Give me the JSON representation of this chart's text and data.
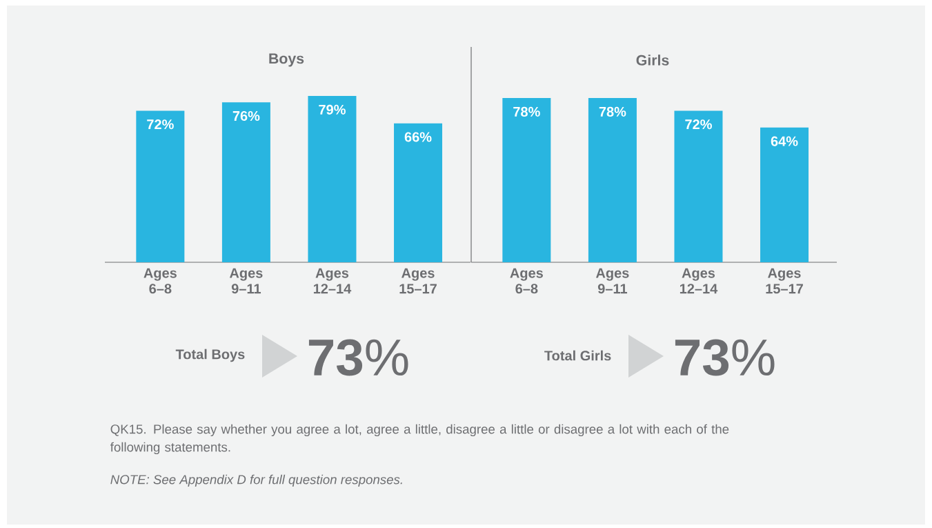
{
  "chart_data": [
    {
      "type": "bar",
      "title": "Boys",
      "categories": [
        "Ages 6–8",
        "Ages 9–11",
        "Ages 12–14",
        "Ages 15–17"
      ],
      "values": [
        72,
        76,
        79,
        66
      ],
      "value_labels": [
        "72%",
        "76%",
        "79%",
        "66%"
      ],
      "color": "#29b5e0",
      "annotations": [
        "Total Boys",
        "**73**%",
        "QK15. Please say whether you agree a lot, agree a little, disagree a little or disagree a lot with each of the following statements.",
        "NOTE: See Appendix D for full question responses."
      ]
    },
    {
      "type": "bar",
      "title": "Girls",
      "categories": [
        "Ages 6–8",
        "Ages 9–11",
        "Ages 12–14",
        "Ages 15–17"
      ],
      "values": [
        78,
        78,
        72,
        64
      ],
      "value_labels": [
        "78%",
        "78%",
        "72%",
        "64%"
      ],
      "color": "#29b5e0",
      "annotations": [
        "Total Girls",
        "**73**%"
      ]
    }
  ]
}
